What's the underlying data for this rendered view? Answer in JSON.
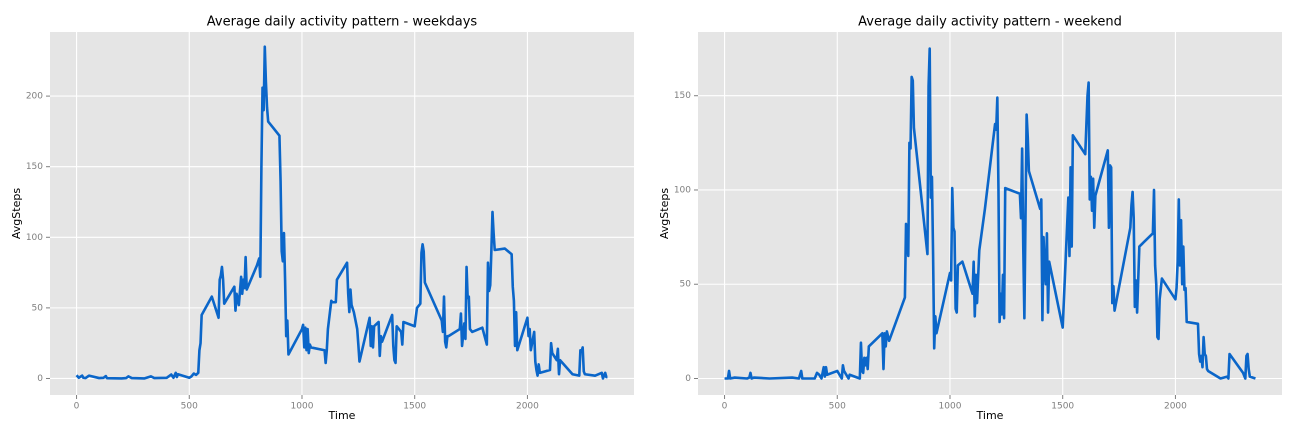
{
  "chart_data": [
    {
      "type": "line",
      "title": "Average daily activity pattern - weekdays",
      "x_label": "Time",
      "y_label": "AvgSteps",
      "color": "#0b66c9",
      "grid": true,
      "xlim": [
        -117.75,
        2472.75
      ],
      "ylim": [
        -11.7,
        245.4
      ],
      "xticks": [
        0,
        500,
        1000,
        1500,
        2000
      ],
      "yticks": [
        0,
        50,
        100,
        150,
        200
      ],
      "x": [
        0,
        10,
        25,
        30,
        40,
        55,
        100,
        120,
        130,
        135,
        200,
        220,
        230,
        245,
        300,
        330,
        345,
        400,
        420,
        430,
        440,
        445,
        450,
        500,
        510,
        520,
        530,
        540,
        545,
        550,
        555,
        600,
        630,
        635,
        640,
        645,
        650,
        655,
        700,
        705,
        710,
        720,
        730,
        735,
        740,
        745,
        750,
        755,
        800,
        810,
        815,
        820,
        825,
        830,
        835,
        840,
        845,
        850,
        900,
        905,
        910,
        915,
        920,
        925,
        930,
        935,
        940,
        1000,
        1005,
        1010,
        1015,
        1020,
        1025,
        1030,
        1035,
        1040,
        1100,
        1105,
        1110,
        1115,
        1130,
        1135,
        1150,
        1155,
        1200,
        1205,
        1210,
        1215,
        1220,
        1230,
        1245,
        1250,
        1255,
        1300,
        1305,
        1310,
        1315,
        1320,
        1340,
        1345,
        1350,
        1355,
        1400,
        1405,
        1410,
        1415,
        1420,
        1440,
        1445,
        1450,
        1500,
        1510,
        1525,
        1530,
        1535,
        1540,
        1545,
        1620,
        1625,
        1630,
        1635,
        1640,
        1645,
        1650,
        1700,
        1705,
        1710,
        1720,
        1725,
        1730,
        1735,
        1740,
        1745,
        1755,
        1800,
        1820,
        1825,
        1830,
        1835,
        1840,
        1845,
        1850,
        1855,
        1900,
        1930,
        1935,
        1940,
        1945,
        1950,
        1955,
        2000,
        2005,
        2010,
        2015,
        2030,
        2035,
        2040,
        2045,
        2050,
        2055,
        2100,
        2105,
        2110,
        2130,
        2135,
        2140,
        2145,
        2150,
        2200,
        2230,
        2235,
        2240,
        2245,
        2250,
        2255,
        2300,
        2330,
        2335,
        2340,
        2345,
        2350,
        2355
      ],
      "values": [
        2.3,
        0.5,
        2,
        0.5,
        0.3,
        2,
        0.3,
        0.5,
        1.7,
        0.2,
        0,
        0.3,
        1.5,
        0.3,
        0,
        1.5,
        0.3,
        0.5,
        2.8,
        0.5,
        4,
        1,
        3,
        0.5,
        1.5,
        3.5,
        2.5,
        4,
        20,
        25,
        45,
        58,
        43,
        70,
        73,
        79,
        70,
        53,
        65,
        48,
        60,
        52,
        72,
        60,
        70,
        64,
        86,
        63,
        80,
        85,
        72,
        150,
        206,
        190,
        235,
        210,
        192,
        182,
        172,
        140,
        90,
        83,
        103,
        70,
        30,
        41,
        17,
        35,
        38,
        22,
        36,
        20,
        35,
        18,
        24,
        22,
        20,
        11,
        20,
        35,
        55,
        54,
        54,
        70,
        82,
        60,
        47,
        63,
        52,
        47,
        35,
        24,
        12,
        43,
        23,
        37,
        22,
        37,
        40,
        16,
        30,
        26,
        45,
        23,
        13,
        11,
        37,
        33,
        24,
        40,
        37,
        50,
        53,
        89,
        95,
        90,
        68,
        41,
        33,
        58,
        26,
        22,
        30,
        30,
        35,
        46,
        23,
        39,
        28,
        79,
        57,
        58,
        35,
        33,
        36,
        24,
        82,
        62,
        66,
        90,
        118,
        103,
        91,
        92,
        88,
        65,
        55,
        23,
        47,
        20,
        43,
        30,
        35,
        20,
        33,
        12,
        6,
        2,
        10,
        4,
        6,
        25,
        18,
        13,
        21,
        3,
        13,
        12,
        3,
        2,
        20,
        19,
        22,
        5,
        3,
        2,
        4,
        0,
        2,
        4,
        1,
        1
      ]
    },
    {
      "type": "line",
      "title": "Average daily activity pattern - weekend",
      "x_label": "Time",
      "y_label": "AvgSteps",
      "color": "#0b66c9",
      "grid": true,
      "xlim": [
        -117.75,
        2472.75
      ],
      "ylim": [
        -8.75,
        183.8
      ],
      "xticks": [
        0,
        500,
        1000,
        1500,
        2000
      ],
      "yticks": [
        0,
        50,
        100,
        150
      ],
      "x": [
        0,
        15,
        20,
        25,
        45,
        100,
        110,
        115,
        120,
        130,
        200,
        300,
        330,
        340,
        345,
        400,
        410,
        420,
        430,
        440,
        445,
        450,
        455,
        500,
        510,
        520,
        525,
        530,
        550,
        555,
        600,
        605,
        610,
        615,
        620,
        625,
        630,
        635,
        640,
        700,
        705,
        710,
        715,
        720,
        730,
        800,
        805,
        810,
        815,
        820,
        825,
        830,
        835,
        840,
        900,
        905,
        910,
        915,
        920,
        925,
        930,
        935,
        940,
        1000,
        1005,
        1010,
        1015,
        1020,
        1025,
        1030,
        1035,
        1055,
        1100,
        1105,
        1110,
        1115,
        1120,
        1130,
        1155,
        1200,
        1205,
        1210,
        1215,
        1220,
        1225,
        1230,
        1235,
        1240,
        1245,
        1310,
        1315,
        1320,
        1325,
        1330,
        1340,
        1345,
        1350,
        1400,
        1405,
        1410,
        1415,
        1420,
        1425,
        1430,
        1435,
        1440,
        1500,
        1525,
        1530,
        1535,
        1540,
        1545,
        1600,
        1610,
        1615,
        1620,
        1625,
        1630,
        1635,
        1640,
        1645,
        1700,
        1705,
        1710,
        1715,
        1720,
        1725,
        1730,
        1800,
        1805,
        1810,
        1815,
        1820,
        1825,
        1830,
        1840,
        1900,
        1905,
        1910,
        1915,
        1920,
        1925,
        1930,
        1940,
        2000,
        2005,
        2010,
        2015,
        2020,
        2025,
        2030,
        2035,
        2040,
        2045,
        2050,
        2100,
        2105,
        2110,
        2115,
        2120,
        2125,
        2130,
        2135,
        2140,
        2145,
        2200,
        2230,
        2235,
        2240,
        2300,
        2310,
        2315,
        2320,
        2325,
        2330,
        2355
      ],
      "values": [
        0,
        0,
        4,
        0,
        0.5,
        0,
        0.5,
        3,
        0,
        0.5,
        0,
        0.5,
        0,
        4,
        0,
        0,
        3,
        2,
        0,
        6,
        1,
        6,
        2,
        4,
        2,
        0,
        7,
        4,
        0,
        2,
        0,
        19,
        4,
        3,
        11,
        7,
        11,
        5,
        17,
        24,
        5,
        24,
        17,
        25,
        20,
        43,
        82,
        77,
        65,
        125,
        122,
        160,
        158,
        133,
        66,
        155,
        175,
        96,
        107,
        66,
        16,
        33,
        24,
        56,
        52,
        101,
        80,
        78,
        37,
        35,
        60,
        62,
        45,
        62,
        33,
        55,
        40,
        68,
        90,
        135,
        132,
        149,
        101,
        30,
        45,
        34,
        55,
        32,
        101,
        98,
        85,
        122,
        70,
        32,
        140,
        128,
        110,
        90,
        95,
        31,
        75,
        58,
        50,
        77,
        35,
        62,
        27,
        96,
        65,
        112,
        70,
        129,
        119,
        150,
        157,
        95,
        107,
        89,
        106,
        80,
        97,
        121,
        80,
        113,
        112,
        40,
        49,
        36,
        80,
        92,
        99,
        85,
        38,
        52,
        35,
        70,
        77,
        100,
        60,
        50,
        22,
        21,
        42,
        53,
        42,
        48,
        62,
        95,
        60,
        84,
        50,
        70,
        47,
        48,
        30,
        29,
        13,
        9,
        12,
        6,
        22,
        13,
        12,
        5,
        4,
        0,
        1,
        0,
        13,
        3,
        0,
        12,
        13,
        5,
        1,
        0
      ]
    }
  ]
}
